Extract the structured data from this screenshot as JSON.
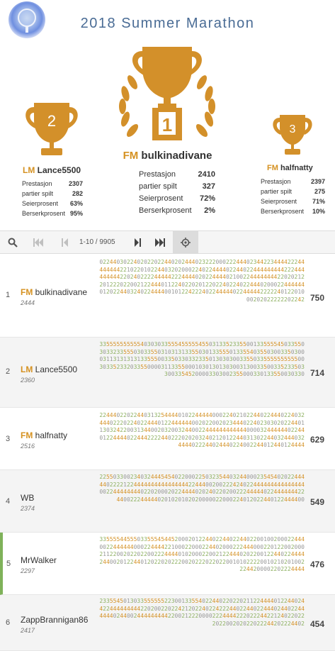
{
  "title": "2018 Summer Marathon",
  "podium": [
    {
      "place": "1",
      "title": "FM",
      "name": "bulkinadivane",
      "stats": [
        {
          "label": "Prestasjon",
          "value": "2410"
        },
        {
          "label": "partier spilt",
          "value": "327"
        },
        {
          "label": "Seierprosent",
          "value": "72%"
        },
        {
          "label": "Berserkprosent",
          "value": "2%"
        }
      ]
    },
    {
      "place": "2",
      "title": "LM",
      "name": "Lance5500",
      "stats": [
        {
          "label": "Prestasjon",
          "value": "2307"
        },
        {
          "label": "partier spilt",
          "value": "282"
        },
        {
          "label": "Seierprosent",
          "value": "63%"
        },
        {
          "label": "Berserkprosent",
          "value": "95%"
        }
      ]
    },
    {
      "place": "3",
      "title": "FM",
      "name": "halfnatty",
      "stats": [
        {
          "label": "Prestasjon",
          "value": "2397"
        },
        {
          "label": "partier spilt",
          "value": "275"
        },
        {
          "label": "Seierprosent",
          "value": "71%"
        },
        {
          "label": "Berserkprosent",
          "value": "10%"
        }
      ]
    }
  ],
  "pager": {
    "info": "1-10 / 9905"
  },
  "colors": {
    "gold": "#d59120",
    "title_blue": "#4a6c95",
    "marker_green": "#7fb25a"
  },
  "standings": [
    {
      "rank": "1",
      "title": "FM",
      "name": "bulkinadivane",
      "rating": "2444",
      "score": "750",
      "sheet": "02244030224020220224402024440232220002224440234422344442224444444422102201022440320200022402244440224402244444444422244444444422024022224444422244440202244440210022444444442202021220122202200212244401122402202012202240224022444020002244444401202244032402244440010122422240224444402244444222224012201000202022222202242"
    },
    {
      "rank": "2",
      "title": "LM",
      "name": "Lance5500",
      "rating": "2360",
      "score": "714",
      "sheet": "33555555555540303033555455555455031335233550013355554503355030332335550303355031031313355030133555013355403550300335030003113131313133555003350330332335013030300335503355555555550030335233203355000031133550001030130130300313003350033523350330033545200003303002355000330133550030330"
    },
    {
      "rank": "3",
      "title": "FM",
      "name": "halfnatty",
      "rating": "2516",
      "score": "629",
      "sheet": "2244402202244031325444401022444440002240210224402244402240324440222022402244401224444440020220020234440224023030202244011303242200313440020320032440022444444444444000032444444022440122444402244422224402220202032402120122440313022440324440324444022244024440224002244012440124444"
    },
    {
      "rank": "4",
      "title": "",
      "name": "WB",
      "rating": "2374",
      "score": "549",
      "sheet": "2255033002340324445454022000225032354403244000235454020224444402222122444444444444444422444002002224240224444444444444440022444444440220200020224444020240220200222444440224444444224400222444440201020102020000022000224012022440122444400"
    },
    {
      "rank": "5",
      "title": "",
      "name": "MrWalker",
      "rating": "2297",
      "score": "476",
      "sheet": "3355554455503355545445200020122440224402244022001002000224440022444444000224444221000220002244020002224440002201220020002112200202202200222444401020002200212244402022001224402244442440020122440120220202220020222022022001010222200102102010022244200002202224444"
    },
    {
      "rank": "6",
      "title": "",
      "name": "ZappBrannigan86",
      "rating": "2417",
      "score": "454",
      "sheet": "233554501303355555522300133554022440220220211224444012244024422444444444220200220224212022402242224402244022444024402244444402440024444444442200212220000222444422202224422124022022202200202022022244202224402"
    }
  ]
}
